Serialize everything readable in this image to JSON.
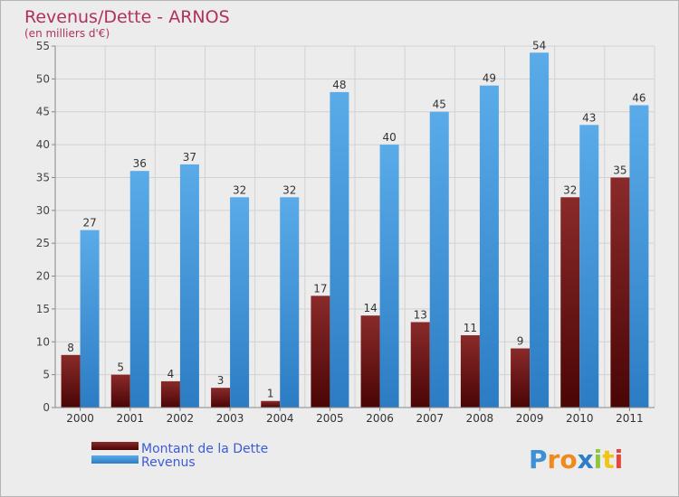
{
  "chart_data": {
    "type": "bar",
    "title": "Revenus/Dette - ARNOS",
    "subtitle": "(en milliers d'€)",
    "categories": [
      "2000",
      "2001",
      "2002",
      "2003",
      "2004",
      "2005",
      "2006",
      "2007",
      "2008",
      "2009",
      "2010",
      "2011"
    ],
    "series": [
      {
        "name": "Montant de la Dette",
        "color": "#6b0f0f",
        "values": [
          8,
          5,
          4,
          3,
          1,
          17,
          14,
          13,
          11,
          9,
          32,
          35
        ]
      },
      {
        "name": "Revenus",
        "color": "#3d97dd",
        "values": [
          27,
          36,
          37,
          32,
          32,
          48,
          40,
          45,
          49,
          54,
          43,
          46
        ]
      }
    ],
    "ylim": [
      0,
      55
    ],
    "yticks": [
      0,
      5,
      10,
      15,
      20,
      25,
      30,
      35,
      40,
      45,
      50,
      55
    ],
    "grid": true,
    "legend": "bottom-left"
  },
  "logo": {
    "letters": [
      {
        "ch": "P",
        "color": "#3d8fd6"
      },
      {
        "ch": "r",
        "color": "#f08a1c"
      },
      {
        "ch": "o",
        "color": "#f08a1c"
      },
      {
        "ch": "x",
        "color": "#2f7dc9"
      },
      {
        "ch": "i",
        "color": "#8dc63f"
      },
      {
        "ch": "t",
        "color": "#f0c419"
      },
      {
        "ch": "i",
        "color": "#e8453c"
      }
    ]
  }
}
